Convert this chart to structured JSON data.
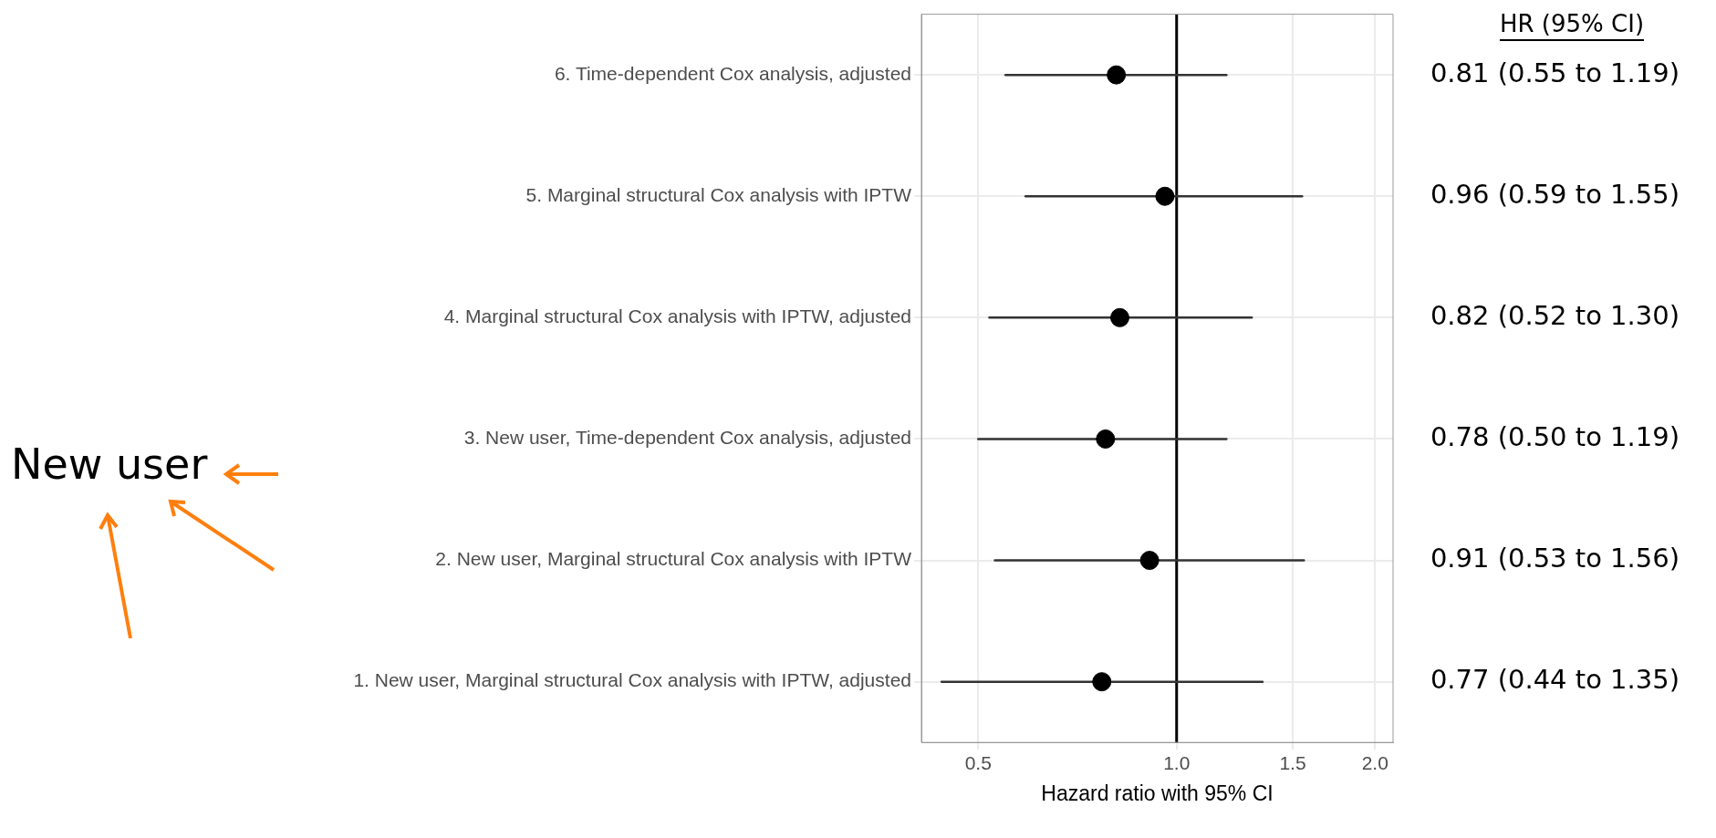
{
  "chart_data": {
    "type": "scatter",
    "orientation": "horizontal",
    "categories": [
      "6. Time-dependent Cox analysis, adjusted",
      "5. Marginal structural Cox analysis with IPTW",
      "4. Marginal structural Cox analysis with IPTW, adjusted",
      "3. New user, Time-dependent Cox analysis, adjusted",
      "2. New user, Marginal structural Cox analysis with IPTW",
      "1. New user, Marginal structural Cox analysis with IPTW, adjusted"
    ],
    "values": [
      0.81,
      0.96,
      0.82,
      0.78,
      0.91,
      0.77
    ],
    "errors": [
      [
        0.55,
        1.19
      ],
      [
        0.59,
        1.55
      ],
      [
        0.52,
        1.3
      ],
      [
        0.5,
        1.19
      ],
      [
        0.53,
        1.56
      ],
      [
        0.44,
        1.35
      ]
    ],
    "value_labels": [
      "0.81 (0.55 to 1.19)",
      "0.96 (0.59 to 1.55)",
      "0.82 (0.52 to 1.30)",
      "0.78 (0.50 to 1.19)",
      "0.91 (0.53 to 1.56)",
      "0.77 (0.44 to 1.35)"
    ],
    "color": "#000000",
    "marker": "circle",
    "xlabel": "Hazard ratio with 95% CI",
    "log": "x",
    "xlim": [
      0.41,
      2.13
    ],
    "xticks": [
      {
        "value": 0.5,
        "label": "0.5"
      },
      {
        "value": 1,
        "label": "1.0"
      },
      {
        "value": 1.5,
        "label": "1.5"
      },
      {
        "value": 2,
        "label": "2.0"
      }
    ],
    "grid": true,
    "ref_lines": [
      {
        "axis": "x",
        "value": 1,
        "color": "#000000"
      }
    ],
    "annotations": [
      "HR (95% CI)",
      "New user"
    ]
  }
}
